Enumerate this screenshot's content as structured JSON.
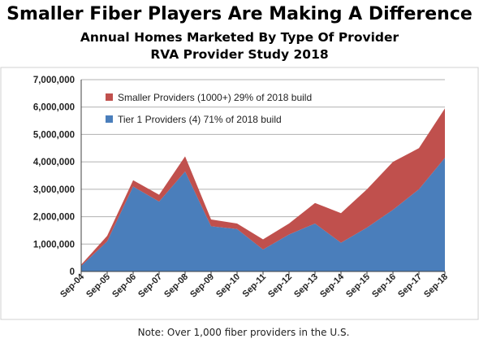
{
  "chart_data": {
    "type": "area",
    "stacked": true,
    "title": "Smaller Fiber Players Are Making A Difference",
    "subtitle": "Annual Homes Marketed By Type Of Provider",
    "subtitle2": "RVA Provider Study 2018",
    "categories": [
      "Sep-04",
      "Sep-05",
      "Sep-06",
      "Sep-07",
      "Sep-08",
      "Sep-09",
      "Sep-10",
      "Sep-11",
      "Sep-12",
      "Sep-13",
      "Sep-14",
      "Sep-15",
      "Sep-16",
      "Sep-17",
      "Sep-18"
    ],
    "series": [
      {
        "name": "Tier 1 Providers (4) 71% of 2018 build",
        "color": "#4a7ebb",
        "values": [
          200000,
          1100000,
          3100000,
          2550000,
          3650000,
          1650000,
          1550000,
          800000,
          1350000,
          1750000,
          1050000,
          1600000,
          2250000,
          3000000,
          4150000
        ]
      },
      {
        "name": "Smaller Providers (1000+) 29% of 2018 build",
        "color": "#c0504d",
        "values": [
          50000,
          200000,
          230000,
          250000,
          550000,
          250000,
          200000,
          370000,
          400000,
          750000,
          1080000,
          1400000,
          1750000,
          1500000,
          1800000
        ]
      }
    ],
    "ylim": [
      0,
      7000000
    ],
    "yticks": [
      "0",
      "1,000,000",
      "2,000,000",
      "3,000,000",
      "4,000,000",
      "5,000,000",
      "6,000,000",
      "7,000,000"
    ],
    "grid": true,
    "legend_position": "top-left",
    "note": "Note: Over 1,000 fiber providers in the U.S."
  }
}
